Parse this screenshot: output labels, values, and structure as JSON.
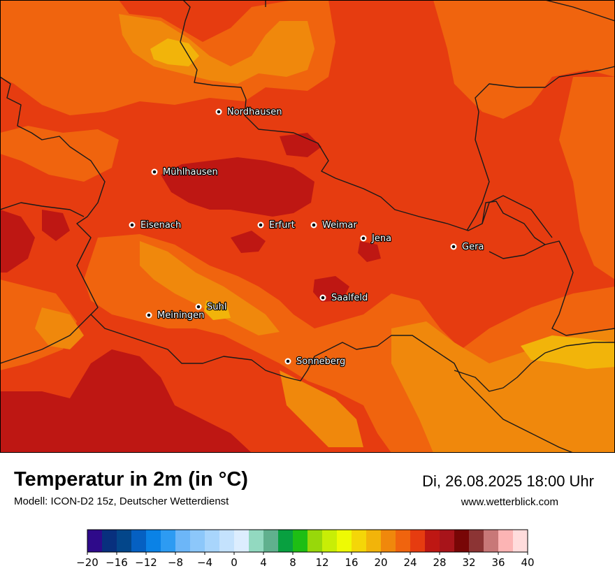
{
  "title": "Temperatur in 2m (in °C)",
  "model": "Modell: ICON-D2 15z, Deutscher Wetterdienst",
  "datetime": "Di, 26.08.2025 18:00 Uhr",
  "website": "www.wetterblick.com",
  "colors": {
    "t_24_26": "#e63c10",
    "t_22_24": "#f0640e",
    "t_20_22": "#f0880c",
    "t_26_28": "#be1713",
    "t_18_20": "#f2b40a",
    "border": "#1a1a1a"
  },
  "cities": [
    {
      "name": "Nordhausen",
      "dot": [
        313,
        160
      ],
      "label": [
        325,
        164
      ]
    },
    {
      "name": "Mühlhausen",
      "dot": [
        221,
        246
      ],
      "label": [
        233,
        250
      ]
    },
    {
      "name": "Eisenach",
      "dot": [
        189,
        322
      ],
      "label": [
        201,
        326
      ]
    },
    {
      "name": "Erfurt",
      "dot": [
        373,
        322
      ],
      "label": [
        385,
        326
      ]
    },
    {
      "name": "Weimar",
      "dot": [
        449,
        322
      ],
      "label": [
        461,
        326
      ]
    },
    {
      "name": "Jena",
      "dot": [
        520,
        341
      ],
      "label": [
        532,
        345
      ]
    },
    {
      "name": "Gera",
      "dot": [
        649,
        353
      ],
      "label": [
        661,
        357
      ]
    },
    {
      "name": "Saalfeld",
      "dot": [
        462,
        426
      ],
      "label": [
        474,
        430
      ]
    },
    {
      "name": "Suhl",
      "dot": [
        284,
        439
      ],
      "label": [
        296,
        443
      ]
    },
    {
      "name": "Meiningen",
      "dot": [
        213,
        451
      ],
      "label": [
        225,
        455
      ]
    },
    {
      "name": "Sonneberg",
      "dot": [
        412,
        517
      ],
      "label": [
        424,
        521
      ]
    }
  ],
  "legend": {
    "colors": [
      "#2e0a8a",
      "#08307e",
      "#03468a",
      "#0560c2",
      "#0a82e6",
      "#2d9bf2",
      "#6cb6f8",
      "#8cc7fa",
      "#a8d5fc",
      "#c4e2fd",
      "#dcedfe",
      "#92d9c0",
      "#60b08e",
      "#08a040",
      "#1ebe14",
      "#98d80a",
      "#c8ee06",
      "#eefa04",
      "#f4d608",
      "#f2b40a",
      "#f0880c",
      "#f0640e",
      "#e63c10",
      "#be1713",
      "#a8141a",
      "#780606",
      "#8c3434",
      "#c87878",
      "#fcb4b4",
      "#ffdcdc"
    ],
    "ticks": [
      "−20",
      "−16",
      "−12",
      "−8",
      "−4",
      "0",
      "4",
      "8",
      "12",
      "16",
      "20",
      "24",
      "28",
      "32",
      "36",
      "40"
    ]
  }
}
